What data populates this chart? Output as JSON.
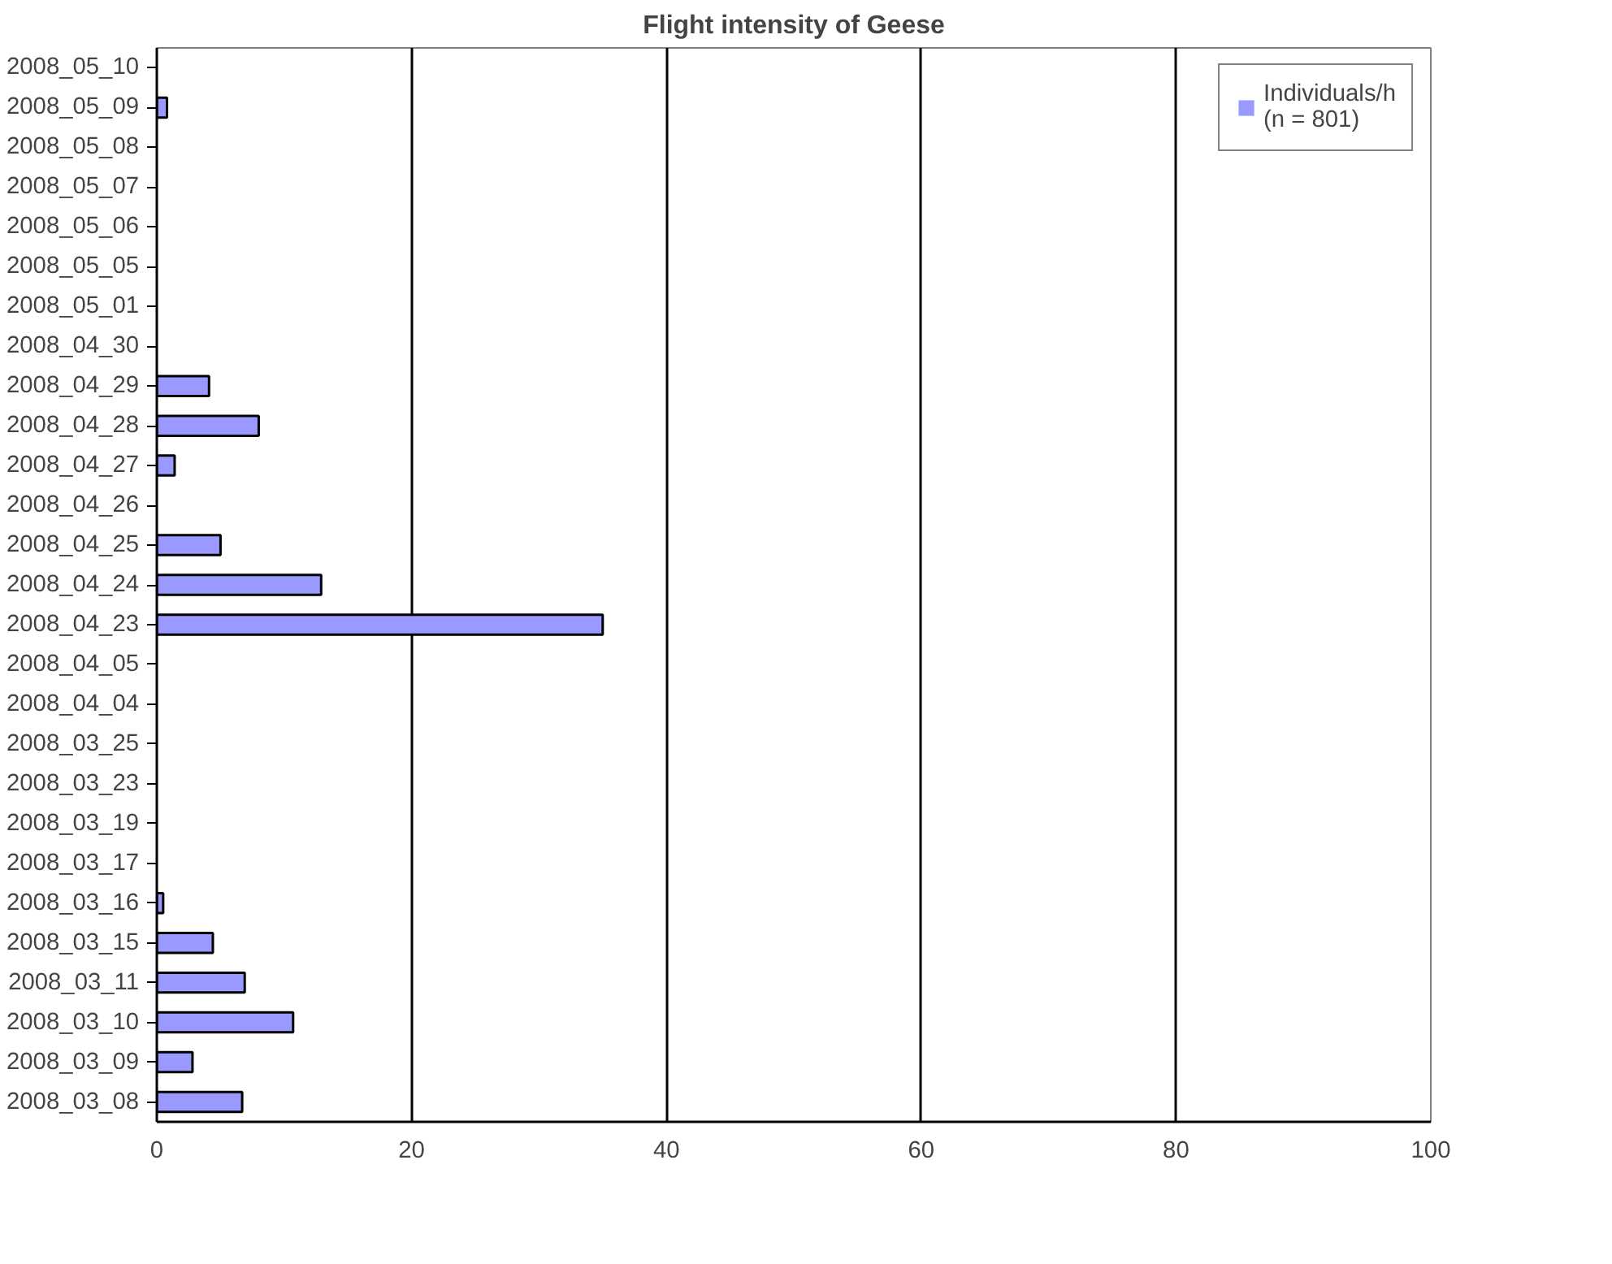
{
  "chart_data": {
    "type": "bar",
    "orientation": "horizontal",
    "title": "Flight intensity of Geese",
    "categories": [
      "2008_05_10",
      "2008_05_09",
      "2008_05_08",
      "2008_05_07",
      "2008_05_06",
      "2008_05_05",
      "2008_05_01",
      "2008_04_30",
      "2008_04_29",
      "2008_04_28",
      "2008_04_27",
      "2008_04_26",
      "2008_04_25",
      "2008_04_24",
      "2008_04_23",
      "2008_04_05",
      "2008_04_04",
      "2008_03_25",
      "2008_03_23",
      "2008_03_19",
      "2008_03_17",
      "2008_03_16",
      "2008_03_15",
      "2008_03_11",
      "2008_03_10",
      "2008_03_09",
      "2008_03_08"
    ],
    "series": [
      {
        "name": "Individuals/h\n(n = 801)",
        "color": "#9999ff",
        "values": [
          0,
          0.8,
          0,
          0,
          0,
          0,
          0,
          0,
          4.1,
          8.0,
          1.4,
          0,
          5.0,
          12.9,
          35.0,
          0,
          0,
          0,
          0,
          0,
          0,
          0.5,
          4.4,
          6.9,
          10.7,
          2.8,
          6.7
        ]
      }
    ],
    "xlim": [
      0,
      100
    ],
    "xticks": [
      0,
      20,
      40,
      60,
      80,
      100
    ],
    "grid": "x",
    "legend": "top right"
  }
}
